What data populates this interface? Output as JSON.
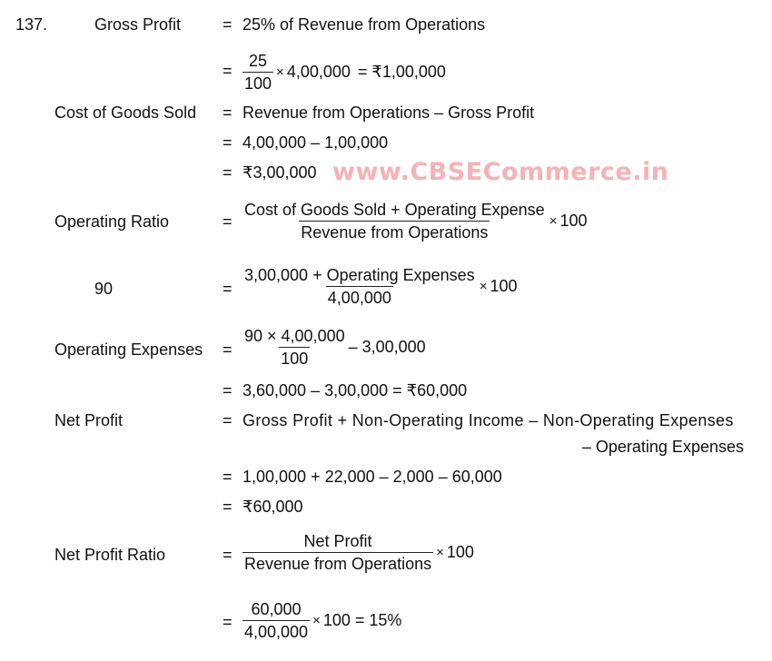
{
  "question_number": "137.",
  "watermark": "www.CBSECommerce.in",
  "eq": "=",
  "times": "×",
  "gross_profit": {
    "label": "Gross Profit",
    "line1": "25% of Revenue from Operations",
    "num": "25",
    "den": "100",
    "after": "4,00,000",
    "result": "= ₹1,00,000"
  },
  "cogs": {
    "label": "Cost of Goods Sold",
    "line1": "Revenue from Operations – Gross Profit",
    "line2": "4,00,000 – 1,00,000",
    "line3": "₹3,00,000"
  },
  "operating_ratio": {
    "label": "Operating Ratio",
    "num": "Cost of Goods Sold + Operating Expense",
    "den": "Revenue from Operations",
    "after": "100"
  },
  "ninety": {
    "label": "90",
    "num": "3,00,000 + Operating Expenses",
    "den": "4,00,000",
    "after": "100"
  },
  "operating_expenses": {
    "label": "Operating Expenses",
    "num": "90 × 4,00,000",
    "den": "100",
    "after": "– 3,00,000",
    "line2": "3,60,000 – 3,00,000 = ₹60,000"
  },
  "net_profit": {
    "label": "Net Profit",
    "line1": "Gross Profit + Non-Operating Income – Non-Operating Expenses",
    "line1b": "– Operating Expenses",
    "line2": "1,00,000 + 22,000 – 2,000 – 60,000",
    "line3": "₹60,000"
  },
  "net_profit_ratio": {
    "label": "Net Profit Ratio",
    "num": "Net Profit",
    "den": "Revenue from Operations",
    "after": "100",
    "num2": "60,000",
    "den2": "4,00,000",
    "after2": "100 = 15%"
  }
}
